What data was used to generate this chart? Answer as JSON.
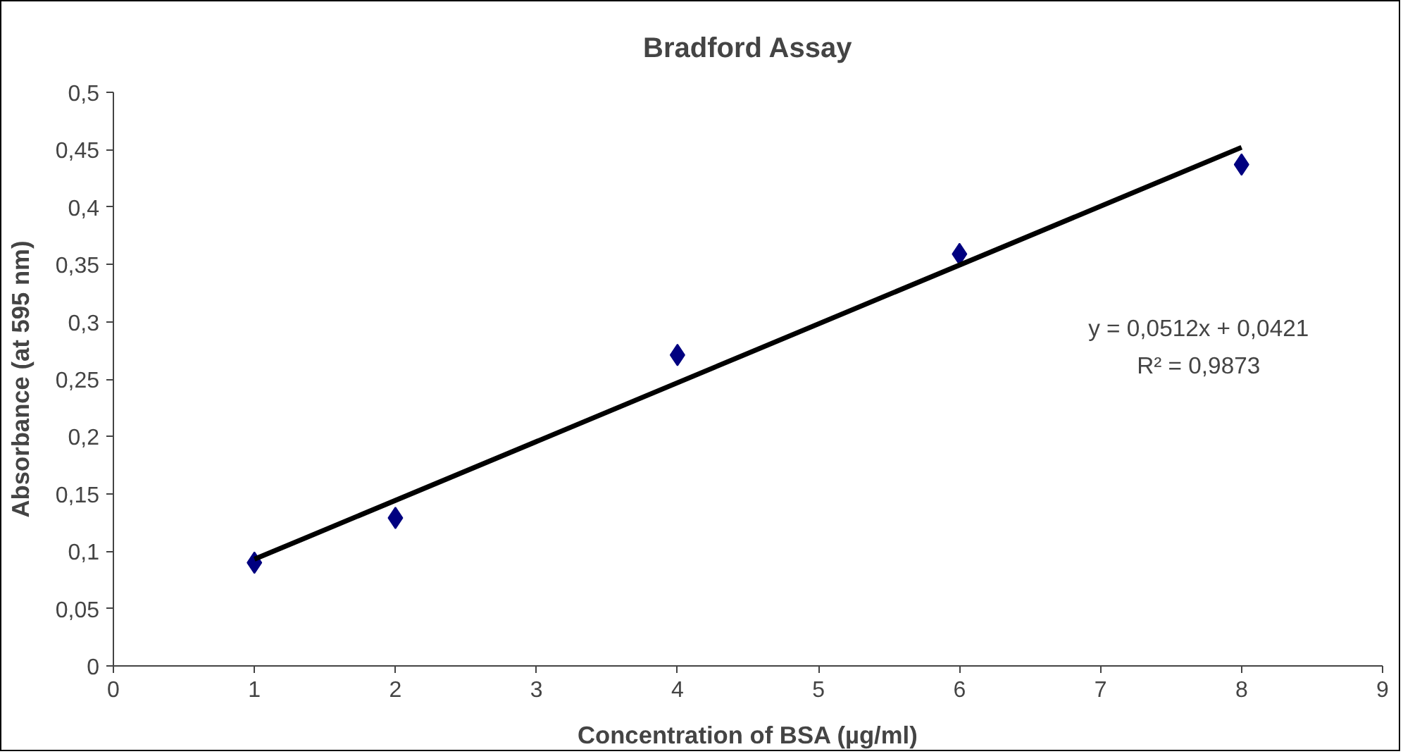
{
  "chart_data": {
    "type": "scatter",
    "title": "Bradford Assay",
    "xlabel": "Concentration of BSA (µg/ml)",
    "ylabel": "Absorbance (at 595 nm)",
    "series": [
      {
        "color": "#000080",
        "x": [
          1,
          2,
          4,
          6,
          8
        ],
        "values": [
          0.09,
          0.129,
          0.271,
          0.359,
          0.437
        ],
        "marker": "diamond"
      },
      {
        "type": "line",
        "color": "#000000",
        "x": [
          1,
          8
        ],
        "values": [
          0.093,
          0.452
        ],
        "marker": "none",
        "line_style": "solid"
      }
    ],
    "xlim": [
      0,
      9
    ],
    "xticks": [
      0,
      1,
      2,
      3,
      4,
      5,
      6,
      7,
      8,
      9
    ],
    "ylim": [
      0,
      0.5
    ],
    "yticks": [
      0,
      {
        "value": 0.05,
        "label": "0,05"
      },
      {
        "value": 0.1,
        "label": "0,1"
      },
      {
        "value": 0.15,
        "label": "0,15"
      },
      {
        "value": 0.2,
        "label": "0,2"
      },
      {
        "value": 0.25,
        "label": "0,25"
      },
      {
        "value": 0.3,
        "label": "0,3"
      },
      {
        "value": 0.35,
        "label": "0,35"
      },
      {
        "value": 0.4,
        "label": "0,4"
      },
      {
        "value": 0.45,
        "label": "0,45"
      },
      {
        "value": 0.5,
        "label": "0,5"
      }
    ],
    "annotations": [
      "y = 0,0512x + 0,0421",
      "R² = 0,9873"
    ],
    "grid": false
  }
}
